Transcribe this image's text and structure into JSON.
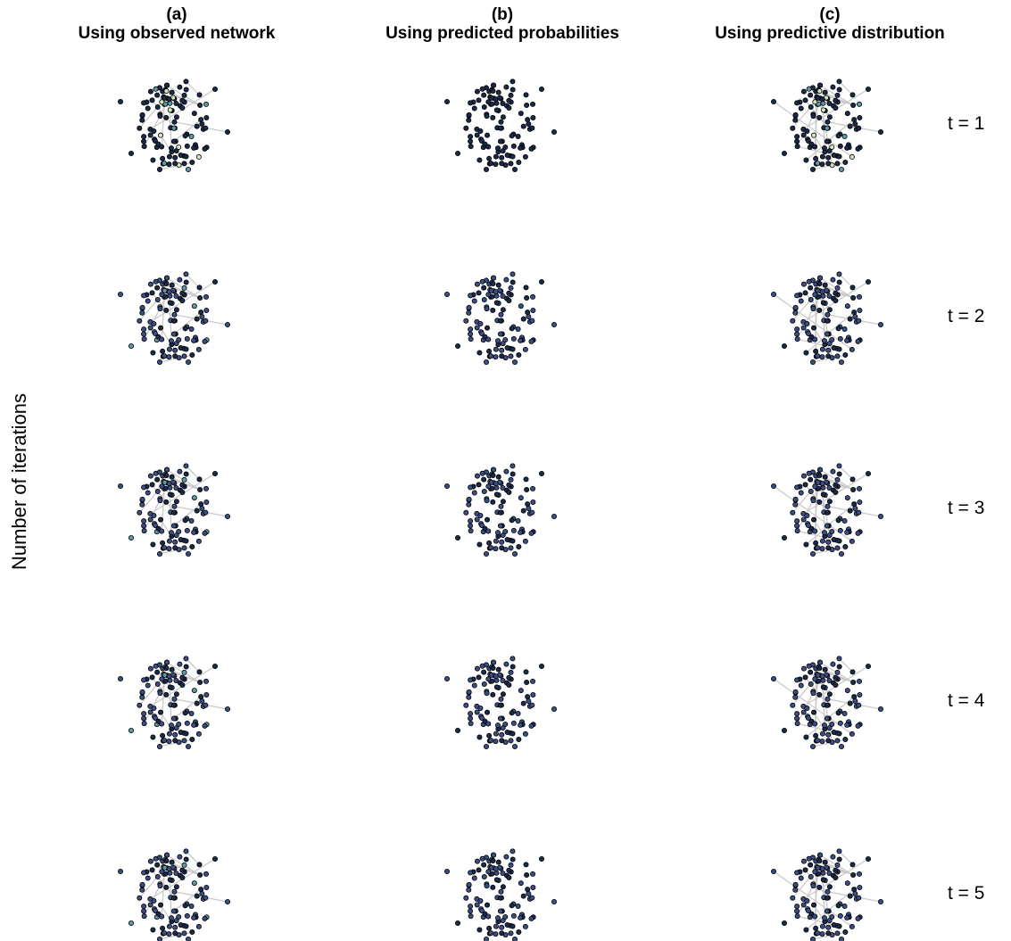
{
  "columns": [
    {
      "letter": "(a)",
      "title": "Using observed network"
    },
    {
      "letter": "(b)",
      "title": "Using predicted probabilities"
    },
    {
      "letter": "(c)",
      "title": "Using predictive distribution"
    }
  ],
  "rows": [
    "t = 1",
    "t = 2",
    "t = 3",
    "t = 4",
    "t = 5"
  ],
  "y_axis_label": "Number of iterations",
  "colors": {
    "node_dark": "#1a2a4a",
    "node_blue": "#3b4f86",
    "node_teal": "#5f9aa8",
    "node_light": "#cfe8c0",
    "edge": "#c8c8c8"
  },
  "chart_data": {
    "type": "network-panel-grid",
    "panel_columns": [
      "(a) Using observed network",
      "(b) Using predicted probabilities",
      "(c) Using predictive distribution"
    ],
    "panel_rows": [
      "t = 1",
      "t = 2",
      "t = 3",
      "t = 4",
      "t = 5"
    ],
    "nodes_per_panel": 100
  }
}
